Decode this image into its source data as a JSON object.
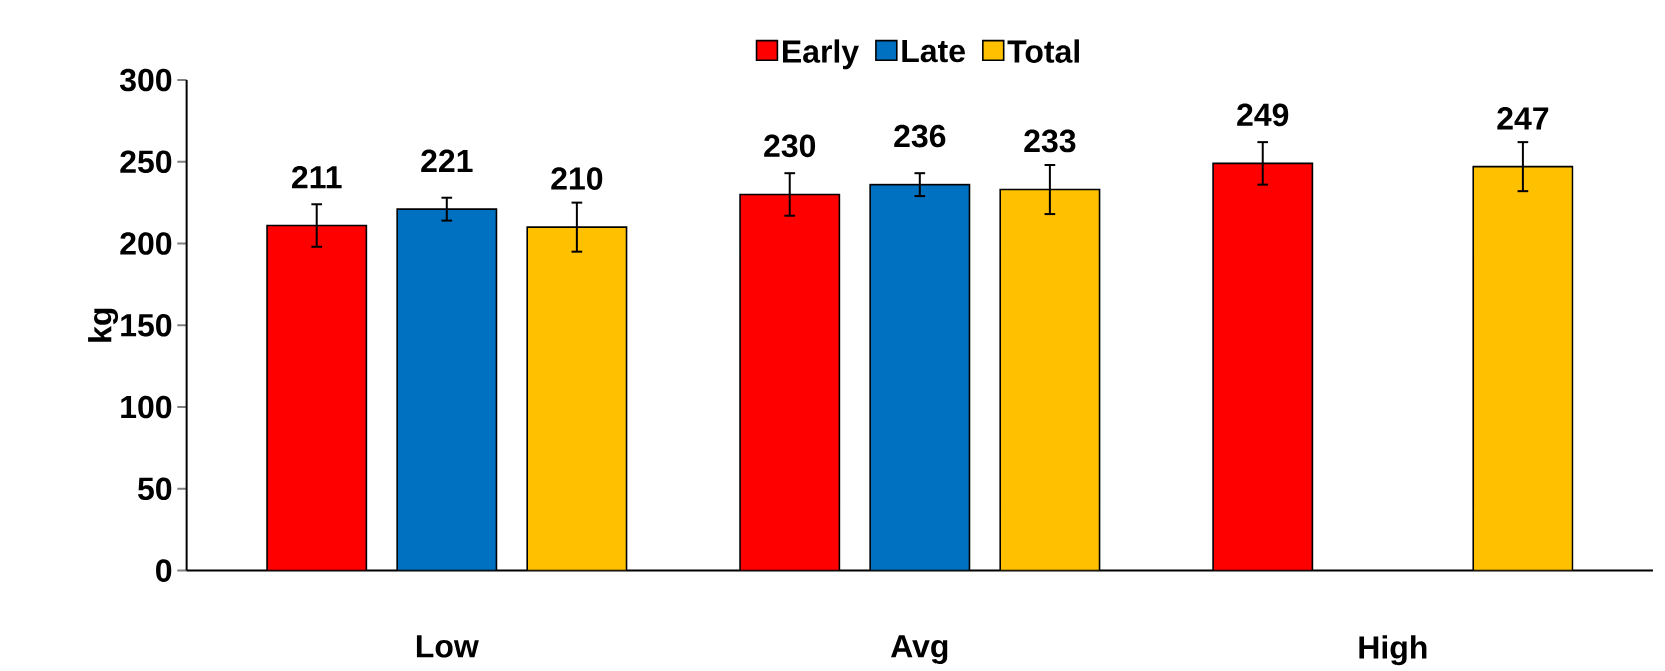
{
  "chart_data": {
    "type": "bar",
    "ylabel": "kg",
    "categories": [
      "Low",
      "Avg",
      "High"
    ],
    "series": [
      {
        "name": "Early",
        "color": "#ff0000",
        "values": [
          211,
          230,
          249
        ],
        "errors": [
          13,
          13,
          13
        ]
      },
      {
        "name": "Late",
        "color": "#0070c0",
        "values": [
          221,
          236,
          null
        ],
        "errors": [
          7,
          7,
          null
        ]
      },
      {
        "name": "Total",
        "color": "#ffc000",
        "values": [
          210,
          233,
          247
        ],
        "errors": [
          15,
          15,
          15
        ]
      }
    ],
    "ylim": [
      0,
      300
    ],
    "yticks": [
      0,
      50,
      100,
      150,
      200,
      250,
      300
    ],
    "data_labels": true,
    "legend": "top",
    "grid": false
  }
}
